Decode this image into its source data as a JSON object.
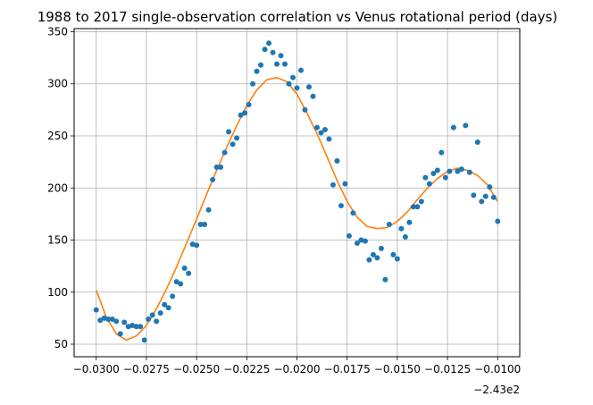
{
  "chart_data": {
    "type": "scatter",
    "title": "1988 to 2017 single-observation correlation vs Venus rotational period (days)",
    "xlabel": "",
    "ylabel": "",
    "x_offset_label": "−2.43e2",
    "xlim": [
      -0.0311,
      -0.0089
    ],
    "ylim": [
      38,
      353
    ],
    "x_ticks": [
      -0.03,
      -0.0275,
      -0.025,
      -0.0225,
      -0.02,
      -0.0175,
      -0.015,
      -0.0125,
      -0.01
    ],
    "x_tick_labels": [
      "−0.0300",
      "−0.0275",
      "−0.0250",
      "−0.0225",
      "−0.0200",
      "−0.0175",
      "−0.0150",
      "−0.0125",
      "−0.0100"
    ],
    "y_ticks": [
      50,
      100,
      150,
      200,
      250,
      300,
      350
    ],
    "y_tick_labels": [
      "50",
      "100",
      "150",
      "200",
      "250",
      "300",
      "350"
    ],
    "grid": true,
    "colors": {
      "points": "#1f77b4",
      "fit": "#ff7f0e",
      "grid": "#b0b0b0"
    },
    "series": [
      {
        "kind": "scatter",
        "x": [
          -0.03,
          -0.0298,
          -0.0296,
          -0.0294,
          -0.0292,
          -0.029,
          -0.0288,
          -0.0286,
          -0.0284,
          -0.0282,
          -0.028,
          -0.0278,
          -0.0276,
          -0.0274,
          -0.0272,
          -0.027,
          -0.0268,
          -0.0266,
          -0.0264,
          -0.0262,
          -0.026,
          -0.0258,
          -0.0256,
          -0.0254,
          -0.0252,
          -0.025,
          -0.0248,
          -0.0246,
          -0.0244,
          -0.0242,
          -0.024,
          -0.0238,
          -0.0236,
          -0.0234,
          -0.0232,
          -0.023,
          -0.0228,
          -0.0226,
          -0.0224,
          -0.0222,
          -0.022,
          -0.0218,
          -0.0216,
          -0.0214,
          -0.0212,
          -0.021,
          -0.0208,
          -0.0206,
          -0.0204,
          -0.0202,
          -0.02,
          -0.0198,
          -0.0196,
          -0.0194,
          -0.0192,
          -0.019,
          -0.0188,
          -0.0186,
          -0.0184,
          -0.0182,
          -0.018,
          -0.0178,
          -0.0176,
          -0.0174,
          -0.0172,
          -0.017,
          -0.0168,
          -0.0166,
          -0.0164,
          -0.0162,
          -0.016,
          -0.0158,
          -0.0156,
          -0.0154,
          -0.0152,
          -0.015,
          -0.0148,
          -0.0146,
          -0.0144,
          -0.0142,
          -0.014,
          -0.0138,
          -0.0136,
          -0.0134,
          -0.0132,
          -0.013,
          -0.0128,
          -0.0126,
          -0.0124,
          -0.0122,
          -0.012,
          -0.0118,
          -0.0116,
          -0.0114,
          -0.0112,
          -0.011,
          -0.0108,
          -0.0106,
          -0.0104,
          -0.0102,
          -0.01
        ],
        "y": [
          83,
          73,
          75,
          74,
          74,
          72,
          60,
          71,
          67,
          68,
          67,
          67,
          54,
          74,
          78,
          72,
          80,
          88,
          85,
          96,
          110,
          108,
          123,
          118,
          146,
          145,
          165,
          165,
          179,
          208,
          220,
          220,
          234,
          254,
          242,
          248,
          270,
          272,
          280,
          300,
          312,
          318,
          333,
          339,
          330,
          319,
          327,
          319,
          300,
          306,
          296,
          313,
          275,
          297,
          288,
          258,
          253,
          256,
          247,
          203,
          226,
          183,
          204,
          154,
          176,
          147,
          150,
          149,
          131,
          136,
          133,
          142,
          112,
          165,
          136,
          132,
          161,
          153,
          167,
          182,
          182,
          187,
          210,
          204,
          214,
          217,
          234,
          210,
          216,
          258,
          216,
          218,
          260,
          215,
          193,
          244,
          187,
          192,
          201,
          191,
          168
        ]
      },
      {
        "kind": "line",
        "x": [
          -0.03,
          -0.0295,
          -0.029,
          -0.0285,
          -0.028,
          -0.0275,
          -0.027,
          -0.0265,
          -0.026,
          -0.0255,
          -0.025,
          -0.0245,
          -0.024,
          -0.0235,
          -0.023,
          -0.0225,
          -0.022,
          -0.0215,
          -0.021,
          -0.0205,
          -0.02,
          -0.0195,
          -0.019,
          -0.0185,
          -0.018,
          -0.0175,
          -0.017,
          -0.0165,
          -0.016,
          -0.0155,
          -0.015,
          -0.0145,
          -0.014,
          -0.0135,
          -0.013,
          -0.0125,
          -0.012,
          -0.0115,
          -0.011,
          -0.0105,
          -0.01
        ],
        "y": [
          102,
          76,
          60,
          54,
          58,
          68,
          84,
          103,
          124,
          147,
          170,
          194,
          217,
          239,
          260,
          279,
          294,
          304,
          306,
          302,
          290,
          272,
          252,
          230,
          207,
          187,
          172,
          163,
          161,
          162,
          168,
          177,
          189,
          200,
          209,
          216,
          219,
          217,
          212,
          203,
          187
        ]
      }
    ]
  }
}
